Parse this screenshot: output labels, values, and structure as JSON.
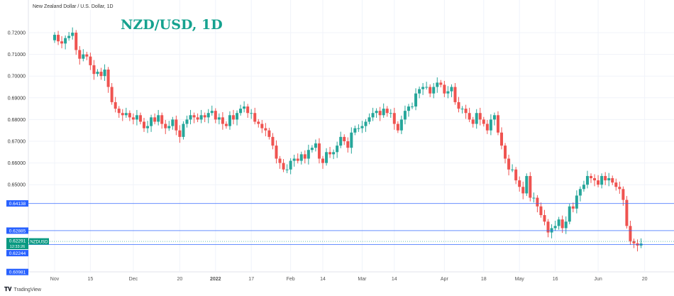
{
  "header": {
    "symbol_description": "New Zealand Dollar / U.S. Dollar, 1D",
    "title": "NZD/USD, 1D"
  },
  "branding": {
    "logo_text": "TradingView"
  },
  "colors": {
    "up": "#26a69a",
    "down": "#ef5350",
    "level_line": "#2962ff",
    "price_label": "#089981",
    "title": "#15a28f"
  },
  "chart_data": {
    "type": "candlestick",
    "title": "NZD/USD, 1D",
    "start_date": "2021-11-01",
    "end_date": "2022-06-17",
    "ylim": [
      0.6098,
      0.7235
    ],
    "grid": true,
    "y_ticks": [
      "0.72000",
      "0.71000",
      "0.70000",
      "0.69000",
      "0.68000",
      "0.67000",
      "0.66000",
      "0.65000"
    ],
    "y_tick_values": [
      0.72,
      0.71,
      0.7,
      0.69,
      0.68,
      0.67,
      0.66,
      0.65
    ],
    "x_ticks": [
      {
        "label": "Nov",
        "date": "2021-11-01"
      },
      {
        "label": "15",
        "date": "2021-11-15"
      },
      {
        "label": "Dec",
        "date": "2021-12-01"
      },
      {
        "label": "20",
        "date": "2021-12-20"
      },
      {
        "label": "2022",
        "date": "2022-01-03"
      },
      {
        "label": "17",
        "date": "2022-01-17"
      },
      {
        "label": "Feb",
        "date": "2022-02-01"
      },
      {
        "label": "14",
        "date": "2022-02-14"
      },
      {
        "label": "Mar",
        "date": "2022-03-01"
      },
      {
        "label": "14",
        "date": "2022-03-14"
      },
      {
        "label": "Apr",
        "date": "2022-04-01"
      },
      {
        "label": "18",
        "date": "2022-04-18"
      },
      {
        "label": "May",
        "date": "2022-05-02"
      },
      {
        "label": "16",
        "date": "2022-05-16"
      },
      {
        "label": "Jun",
        "date": "2022-06-01"
      },
      {
        "label": "20",
        "date": "2022-06-20"
      }
    ],
    "closes": [
      0.719,
      0.716,
      0.715,
      0.7175,
      0.7185,
      0.72,
      0.712,
      0.708,
      0.71,
      0.709,
      0.705,
      0.701,
      0.702,
      0.7,
      0.703,
      0.695,
      0.688,
      0.685,
      0.683,
      0.682,
      0.683,
      0.681,
      0.68,
      0.682,
      0.679,
      0.676,
      0.677,
      0.681,
      0.679,
      0.682,
      0.678,
      0.676,
      0.677,
      0.68,
      0.675,
      0.672,
      0.678,
      0.68,
      0.682,
      0.681,
      0.68,
      0.682,
      0.681,
      0.683,
      0.684,
      0.68,
      0.681,
      0.678,
      0.677,
      0.682,
      0.68,
      0.683,
      0.685,
      0.686,
      0.683,
      0.683,
      0.679,
      0.678,
      0.676,
      0.675,
      0.672,
      0.668,
      0.662,
      0.66,
      0.657,
      0.657,
      0.661,
      0.662,
      0.661,
      0.664,
      0.662,
      0.666,
      0.667,
      0.669,
      0.662,
      0.66,
      0.665,
      0.664,
      0.665,
      0.668,
      0.672,
      0.67,
      0.667,
      0.674,
      0.676,
      0.676,
      0.677,
      0.679,
      0.681,
      0.683,
      0.684,
      0.682,
      0.685,
      0.683,
      0.683,
      0.678,
      0.675,
      0.68,
      0.684,
      0.686,
      0.686,
      0.692,
      0.694,
      0.695,
      0.695,
      0.692,
      0.695,
      0.697,
      0.696,
      0.692,
      0.693,
      0.695,
      0.688,
      0.685,
      0.685,
      0.683,
      0.68,
      0.678,
      0.683,
      0.68,
      0.678,
      0.675,
      0.68,
      0.682,
      0.674,
      0.668,
      0.662,
      0.657,
      0.657,
      0.652,
      0.649,
      0.646,
      0.654,
      0.644,
      0.644,
      0.64,
      0.636,
      0.633,
      0.628,
      0.63,
      0.631,
      0.634,
      0.63,
      0.633,
      0.64,
      0.639,
      0.645,
      0.648,
      0.65,
      0.654,
      0.653,
      0.652,
      0.65,
      0.654,
      0.652,
      0.653,
      0.651,
      0.649,
      0.648,
      0.643,
      0.631,
      0.624,
      0.623,
      0.622,
      0.6229
    ],
    "first_open": 0.7165,
    "levels": [
      {
        "value": 0.64138,
        "label": "0.64138"
      },
      {
        "value": 0.62885,
        "label": "0.62885"
      },
      {
        "value": 0.62244,
        "label": "0.62244"
      },
      {
        "value": 0.60981,
        "label": "0.60981"
      }
    ],
    "last_price": {
      "value": 0.62291,
      "label": "0.62291",
      "countdown": "12:33:26",
      "symbol": "NZDUSD"
    }
  }
}
